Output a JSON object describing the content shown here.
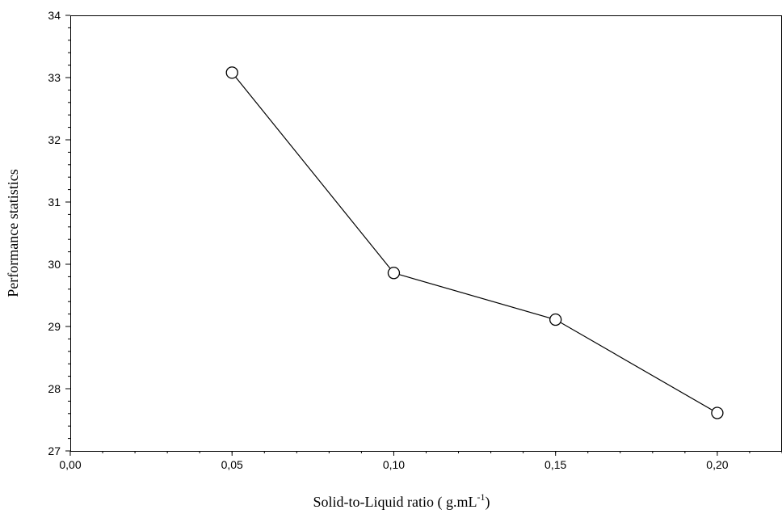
{
  "chart_data": {
    "type": "line",
    "title": "",
    "xlabel": "Solid-to-Liquid ratio ( g.mL",
    "xlabel_superscript": "-1",
    "xlabel_suffix": ")",
    "ylabel": "Performance statistics",
    "xlim": [
      0,
      0.22
    ],
    "ylim": [
      27,
      34
    ],
    "x_ticks": [
      "0,00",
      "0,05",
      "0,10",
      "0,15",
      "0,20"
    ],
    "x_tick_values": [
      0,
      0.05,
      0.1,
      0.15,
      0.2
    ],
    "y_ticks": [
      "27",
      "28",
      "29",
      "30",
      "31",
      "32",
      "33",
      "34"
    ],
    "y_tick_values": [
      27,
      28,
      29,
      30,
      31,
      32,
      33,
      34
    ],
    "series": [
      {
        "x": [
          0.05,
          0.1,
          0.15,
          0.2
        ],
        "y": [
          33.08,
          29.86,
          29.11,
          27.61
        ],
        "marker": "open-circle",
        "color": "#000000"
      }
    ],
    "grid": false,
    "legend": "none"
  }
}
